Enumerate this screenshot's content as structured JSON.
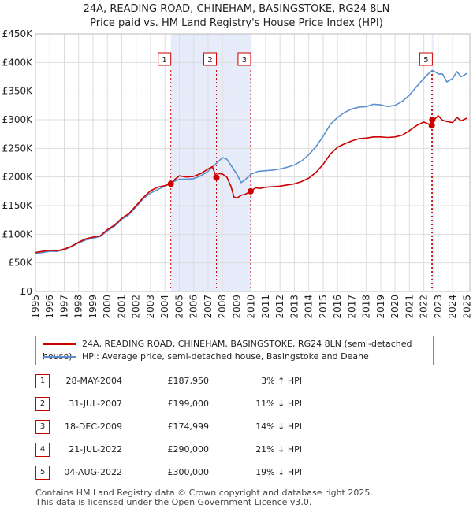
{
  "title_line1": "24A, READING ROAD, CHINEHAM, BASINGSTOKE, RG24 8LN",
  "title_line2": "Price paid vs. HM Land Registry's House Price Index (HPI)",
  "colors": {
    "price_line": "#cc0000",
    "hpi_line": "#5b8fd0",
    "highlight_band": "#e6ecfa",
    "grid": "#dddddd",
    "marker_border": "#cc0000"
  },
  "chart_data": {
    "type": "line",
    "title": "24A, READING ROAD, CHINEHAM, BASINGSTOKE, RG24 8LN — Price paid vs. HM Land Registry's House Price Index (HPI)",
    "xlim": [
      1995,
      2025.2
    ],
    "ylim": [
      0,
      450000
    ],
    "y_ticks": [
      0,
      50000,
      100000,
      150000,
      200000,
      250000,
      300000,
      350000,
      400000,
      450000
    ],
    "y_tick_labels": [
      "£0",
      "£50K",
      "£100K",
      "£150K",
      "£200K",
      "£250K",
      "£300K",
      "£350K",
      "£400K",
      "£450K"
    ],
    "x_ticks": [
      1995,
      1996,
      1997,
      1998,
      1999,
      2000,
      2001,
      2002,
      2003,
      2004,
      2005,
      2006,
      2007,
      2008,
      2009,
      2010,
      2011,
      2012,
      2013,
      2014,
      2015,
      2016,
      2017,
      2018,
      2019,
      2020,
      2021,
      2022,
      2023,
      2024,
      2025
    ],
    "highlight_ranges": [
      [
        2004.41,
        2009.96
      ],
      [
        2022.55,
        2022.6
      ]
    ],
    "series": [
      {
        "name": "24A, READING ROAD, CHINEHAM, BASINGSTOKE, RG24 8LN (semi-detached house)",
        "color": "#cc0000",
        "x": [
          1995,
          1995.5,
          1996,
          1996.5,
          1997,
          1997.5,
          1998,
          1998.5,
          1999,
          1999.5,
          2000,
          2000.5,
          2001,
          2001.5,
          2002,
          2002.5,
          2003,
          2003.5,
          2004,
          2004.41,
          2004.7,
          2005,
          2005.5,
          2006,
          2006.5,
          2007,
          2007.3,
          2007.58,
          2007.7,
          2008,
          2008.3,
          2008.6,
          2008.8,
          2009,
          2009.3,
          2009.6,
          2009.96,
          2010.3,
          2010.6,
          2011,
          2011.5,
          2012,
          2012.5,
          2013,
          2013.5,
          2014,
          2014.5,
          2015,
          2015.5,
          2016,
          2016.5,
          2017,
          2017.5,
          2018,
          2018.5,
          2019,
          2019.5,
          2020,
          2020.5,
          2021,
          2021.5,
          2022,
          2022.55,
          2022.59,
          2022.8,
          2023,
          2023.3,
          2023.6,
          2024,
          2024.3,
          2024.6,
          2025
        ],
        "values": [
          68000,
          70000,
          72000,
          71000,
          74000,
          79000,
          86000,
          92000,
          95000,
          97000,
          108000,
          116000,
          128000,
          136000,
          150000,
          164000,
          176000,
          182000,
          185000,
          187950,
          196000,
          202000,
          200000,
          201000,
          206000,
          214000,
          218000,
          199000,
          206000,
          205000,
          200000,
          183000,
          165000,
          163000,
          168000,
          170000,
          174999,
          181000,
          180000,
          182000,
          183000,
          184000,
          186000,
          188000,
          192000,
          198000,
          208000,
          222000,
          240000,
          252000,
          258000,
          263000,
          267000,
          268000,
          270000,
          270000,
          269000,
          270000,
          273000,
          281000,
          290000,
          296000,
          290000,
          300000,
          302000,
          307000,
          299000,
          297000,
          295000,
          304000,
          298000,
          303000
        ]
      },
      {
        "name": "HPI: Average price, semi-detached house, Basingstoke and Deane",
        "color": "#5b8fd0",
        "x": [
          1995,
          1995.5,
          1996,
          1996.5,
          1997,
          1997.5,
          1998,
          1998.5,
          1999,
          1999.5,
          2000,
          2000.5,
          2001,
          2001.5,
          2002,
          2002.5,
          2003,
          2003.5,
          2004,
          2004.5,
          2005,
          2005.5,
          2006,
          2006.5,
          2007,
          2007.5,
          2008,
          2008.3,
          2008.6,
          2009,
          2009.3,
          2009.6,
          2010,
          2010.5,
          2011,
          2011.5,
          2012,
          2012.5,
          2013,
          2013.5,
          2014,
          2014.5,
          2015,
          2015.5,
          2016,
          2016.5,
          2017,
          2017.5,
          2018,
          2018.5,
          2019,
          2019.5,
          2020,
          2020.5,
          2021,
          2021.5,
          2022,
          2022.3,
          2022.6,
          2022.9,
          2023,
          2023.3,
          2023.6,
          2024,
          2024.3,
          2024.6,
          2025
        ],
        "values": [
          66000,
          68000,
          70000,
          70000,
          73000,
          78000,
          85000,
          90000,
          93000,
          96000,
          106000,
          114000,
          126000,
          134000,
          148000,
          162000,
          172000,
          178000,
          184000,
          191000,
          196000,
          196000,
          197000,
          202000,
          210000,
          222000,
          234000,
          231000,
          220000,
          205000,
          190000,
          196000,
          205000,
          210000,
          211000,
          212000,
          214000,
          217000,
          221000,
          228000,
          239000,
          253000,
          271000,
          292000,
          304000,
          313000,
          319000,
          322000,
          323000,
          327000,
          326000,
          323000,
          325000,
          332000,
          343000,
          358000,
          372000,
          380000,
          386000,
          382000,
          380000,
          380000,
          366000,
          372000,
          384000,
          375000,
          381000
        ]
      }
    ],
    "transactions": [
      {
        "id": "1",
        "x": 2004.41,
        "value": 187950
      },
      {
        "id": "2",
        "x": 2007.58,
        "value": 199000
      },
      {
        "id": "3",
        "x": 2009.96,
        "value": 174999
      },
      {
        "id": "4",
        "x": 2022.55,
        "value": 290000
      },
      {
        "id": "5",
        "x": 2022.59,
        "value": 300000
      }
    ]
  },
  "legend": {
    "price_label": "24A, READING ROAD, CHINEHAM, BASINGSTOKE, RG24 8LN (semi-detached house)",
    "hpi_label": "HPI: Average price, semi-detached house, Basingstoke and Deane"
  },
  "table_rows": [
    {
      "num": "1",
      "date": "28-MAY-2004",
      "price": "£187,950",
      "hpi": "3% ↑ HPI"
    },
    {
      "num": "2",
      "date": "31-JUL-2007",
      "price": "£199,000",
      "hpi": "11% ↓ HPI"
    },
    {
      "num": "3",
      "date": "18-DEC-2009",
      "price": "£174,999",
      "hpi": "14% ↓ HPI"
    },
    {
      "num": "4",
      "date": "21-JUL-2022",
      "price": "£290,000",
      "hpi": "21% ↓ HPI"
    },
    {
      "num": "5",
      "date": "04-AUG-2022",
      "price": "£300,000",
      "hpi": "19% ↓ HPI"
    }
  ],
  "footer_line1": "Contains HM Land Registry data © Crown copyright and database right 2025.",
  "footer_line2": "This data is licensed under the Open Government Licence v3.0."
}
